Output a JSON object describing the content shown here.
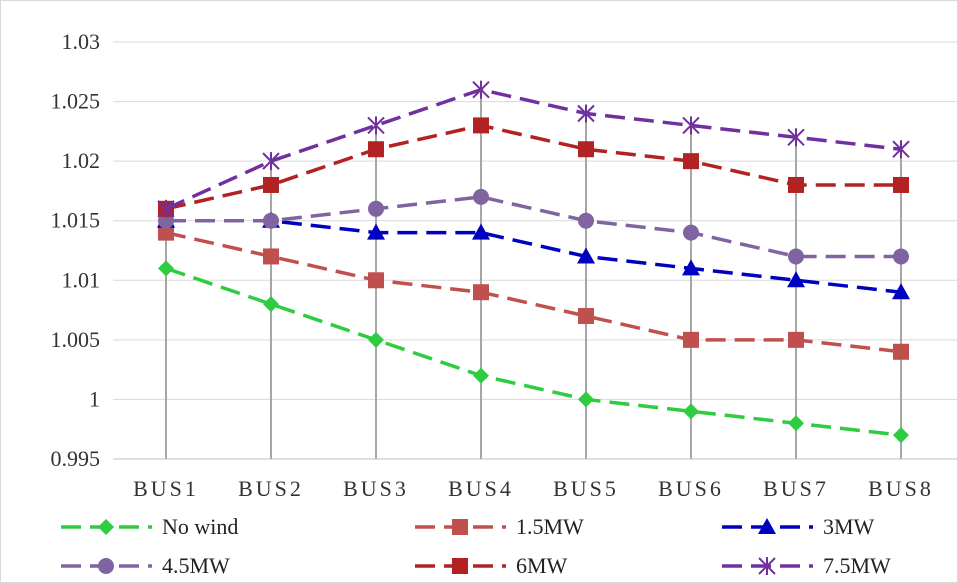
{
  "chart_data": {
    "type": "line",
    "title": "",
    "xlabel": "",
    "ylabel": "",
    "categories": [
      "BUS1",
      "BUS2",
      "BUS3",
      "BUS4",
      "BUS5",
      "BUS6",
      "BUS7",
      "BUS8"
    ],
    "ylim": [
      0.995,
      1.03
    ],
    "yticks": [
      "0.995",
      "1",
      "1.005",
      "1.01",
      "1.015",
      "1.02",
      "1.025",
      "1.03"
    ],
    "grid": "horizontal major gridlines plus vertical drop lines at each category",
    "legend_position": "bottom",
    "series": [
      {
        "name": "No wind",
        "values": [
          1.011,
          1.008,
          1.005,
          1.002,
          1.0,
          0.999,
          0.998,
          0.997
        ],
        "color": "#2ECC40",
        "marker": "diamond"
      },
      {
        "name": "1.5MW",
        "values": [
          1.014,
          1.012,
          1.01,
          1.009,
          1.007,
          1.005,
          1.005,
          1.004
        ],
        "color": "#C0504D",
        "marker": "square"
      },
      {
        "name": "3MW",
        "values": [
          1.015,
          1.015,
          1.014,
          1.014,
          1.012,
          1.011,
          1.01,
          1.009
        ],
        "color": "#0000C0",
        "marker": "triangle"
      },
      {
        "name": "4.5MW",
        "values": [
          1.015,
          1.015,
          1.016,
          1.017,
          1.015,
          1.014,
          1.012,
          1.012
        ],
        "color": "#8064A2",
        "marker": "circle"
      },
      {
        "name": "6MW",
        "values": [
          1.016,
          1.018,
          1.021,
          1.023,
          1.021,
          1.02,
          1.018,
          1.018
        ],
        "color": "#B22222",
        "marker": "square"
      },
      {
        "name": "7.5MW",
        "values": [
          1.016,
          1.02,
          1.023,
          1.026,
          1.024,
          1.023,
          1.022,
          1.021
        ],
        "color": "#7030A0",
        "marker": "star"
      }
    ]
  }
}
